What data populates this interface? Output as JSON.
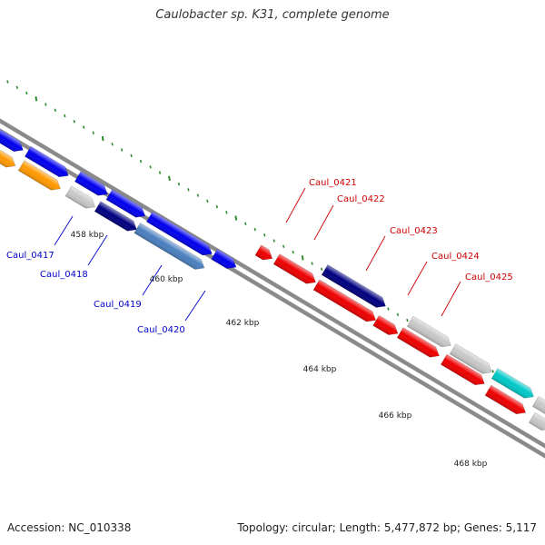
{
  "title": "Caulobacter sp. K31, complete genome",
  "footer": {
    "accession": "Accession: NC_010338",
    "summary": "Topology: circular; Length: 5,477,872 bp; Genes: 5,117"
  },
  "colors": {
    "backbone": "#8a8a8a",
    "tick": "#2e8b2e",
    "label_left": "#0000cc",
    "label_right": "#cc0000"
  },
  "scale_labels": [
    "458 kbp",
    "460 kbp",
    "462 kbp",
    "464 kbp",
    "466 kbp",
    "468 kbp"
  ],
  "labels_left": [
    "Caul_0417",
    "Caul_0418",
    "Caul_0419",
    "Caul_0420"
  ],
  "labels_right": [
    "Caul_0421",
    "Caul_0422",
    "Caul_0423",
    "Caul_0424",
    "Caul_0425"
  ],
  "gene_colors": {
    "blue": "#0000ee",
    "orange": "#ff9900",
    "grey": "#c8c8c8",
    "navy": "#000080",
    "steel": "#4a7fbf",
    "red": "#ee0000",
    "slate": "#6a5acd",
    "cyan": "#00c8c8"
  }
}
